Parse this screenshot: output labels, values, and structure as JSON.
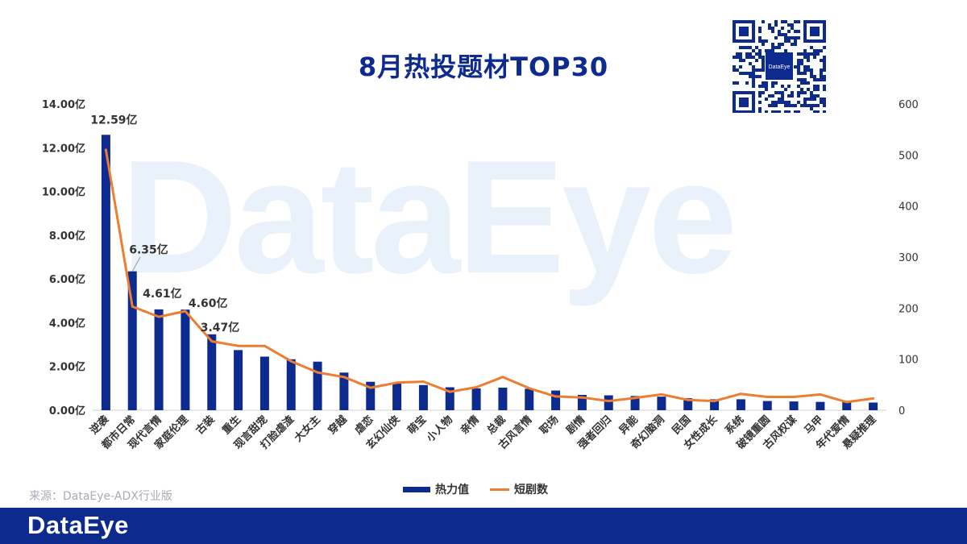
{
  "page": {
    "title": "8月热投题材TOP30",
    "source": "来源：DataEye-ADX行业版",
    "footer_logo": "DataEye",
    "qr_label": "DataEye",
    "watermark": "DataEye"
  },
  "colors": {
    "bar": "#0d2a8f",
    "line": "#ed7d31",
    "footer": "#0d2a8f",
    "title": "#0d2a8f",
    "watermark": "#e9f1fa"
  },
  "chart_data": {
    "type": "bar",
    "categories": [
      "逆袭",
      "都市日常",
      "现代言情",
      "家庭伦理",
      "古装",
      "重生",
      "现言甜宠",
      "打脸虐渣",
      "大女主",
      "穿越",
      "虐恋",
      "玄幻仙侠",
      "萌宝",
      "小人物",
      "亲情",
      "总裁",
      "古风言情",
      "职场",
      "剧情",
      "强者回归",
      "异能",
      "奇幻脑洞",
      "民国",
      "女性成长",
      "系统",
      "破镜重圆",
      "古风权谋",
      "马甲",
      "年代爱情",
      "悬疑推理"
    ],
    "series": [
      {
        "name": "热力值",
        "type": "bar",
        "axis": "left",
        "values": [
          12.59,
          6.35,
          4.61,
          4.6,
          3.47,
          2.75,
          2.45,
          2.33,
          2.22,
          1.72,
          1.3,
          1.22,
          1.15,
          1.05,
          1.0,
          1.03,
          0.98,
          0.9,
          0.7,
          0.68,
          0.65,
          0.62,
          0.55,
          0.5,
          0.5,
          0.42,
          0.4,
          0.38,
          0.38,
          0.35
        ]
      },
      {
        "name": "短剧数",
        "type": "line",
        "axis": "right",
        "values": [
          510,
          203,
          183,
          194,
          135,
          126,
          126,
          96,
          74,
          65,
          44,
          54,
          56,
          36,
          45,
          65,
          43,
          27,
          25,
          18,
          24,
          31,
          20,
          18,
          32,
          26,
          26,
          31,
          16,
          23
        ]
      }
    ],
    "data_labels": [
      {
        "index": 0,
        "text": "12.59亿"
      },
      {
        "index": 1,
        "text": "6.35亿"
      },
      {
        "index": 2,
        "text": "4.61亿"
      },
      {
        "index": 3,
        "text": "4.60亿"
      },
      {
        "index": 4,
        "text": "3.47亿"
      }
    ],
    "y_left": {
      "min": 0,
      "max": 14,
      "step": 2,
      "tick_labels": [
        "0.00亿",
        "2.00亿",
        "4.00亿",
        "6.00亿",
        "8.00亿",
        "10.00亿",
        "12.00亿",
        "14.00亿"
      ]
    },
    "y_right": {
      "min": 0,
      "max": 600,
      "step": 100,
      "tick_labels": [
        "0",
        "100",
        "200",
        "300",
        "400",
        "500",
        "600"
      ]
    },
    "grid": false,
    "legend_position": "bottom"
  }
}
